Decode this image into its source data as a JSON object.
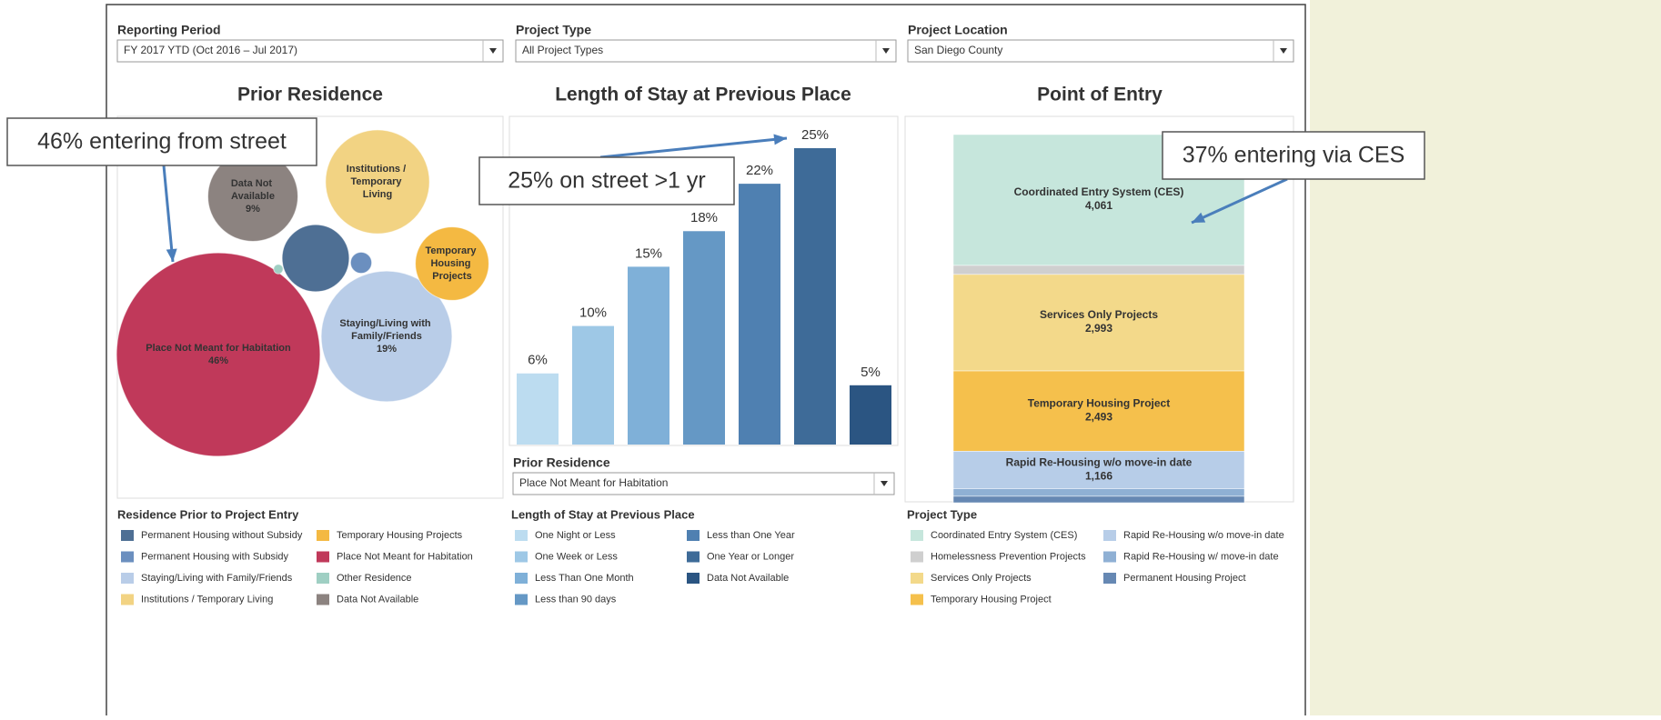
{
  "filters": [
    {
      "label": "Reporting Period",
      "value": "FY 2017 YTD (Oct 2016 – Jul 2017)"
    },
    {
      "label": "Project Type",
      "value": "All Project Types"
    },
    {
      "label": "Project Location",
      "value": "San Diego County"
    }
  ],
  "callouts": [
    "46% entering from street",
    "25% on street >1 yr",
    "37% entering via CES"
  ],
  "chart_data": [
    {
      "type": "bubble",
      "title": "Prior Residence",
      "labels": [
        "Place Not Meant for Habitation",
        "Staying/Living with Family/Friends",
        "Institutions / Temporary Living",
        "Data Not Available",
        "Temporary Housing Projects",
        null,
        null,
        null
      ],
      "values": [
        46,
        19,
        12,
        9,
        6,
        5,
        0.5,
        0.1
      ],
      "value_labels": [
        "46%",
        "19%",
        null,
        "9%",
        null,
        null,
        null,
        null
      ],
      "colors": [
        "#c0395a",
        "#b9cde8",
        "#f2d383",
        "#8c8380",
        "#f4b942",
        "#4e6f94",
        "#6b8fbf",
        "#9fcfc3"
      ],
      "legend": {
        "title": "Residence Prior to Project Entry",
        "items": [
          {
            "name": "Permanent Housing without Subsidy",
            "color": "#4e6f94"
          },
          {
            "name": "Permanent Housing with Subsidy",
            "color": "#6b8fbf"
          },
          {
            "name": "Staying/Living with Family/Friends",
            "color": "#b9cde8"
          },
          {
            "name": "Institutions / Temporary Living",
            "color": "#f2d383"
          },
          {
            "name": "Temporary Housing Projects",
            "color": "#f4b942"
          },
          {
            "name": "Place Not Meant for Habitation",
            "color": "#c0395a"
          },
          {
            "name": "Other Residence",
            "color": "#9fcfc3"
          },
          {
            "name": "Data Not Available",
            "color": "#8c8380"
          }
        ]
      }
    },
    {
      "type": "bar",
      "title": "Length of Stay at Previous Place",
      "categories": [
        "One Night or Less",
        "One Week or Less",
        "Less Than One Month",
        "Less than 90 days",
        "Less than One Year",
        "One Year or Longer",
        "Data Not Available"
      ],
      "values": [
        6,
        10,
        15,
        18,
        22,
        25,
        5
      ],
      "value_labels": [
        "6%",
        "10%",
        "15%",
        "18%",
        "22%",
        "25%",
        "5%"
      ],
      "colors": [
        "#bcdcf0",
        "#9ec8e6",
        "#7fb0d8",
        "#6598c5",
        "#4f80b1",
        "#3e6b98",
        "#2b5582"
      ],
      "filter": {
        "label": "Prior Residence",
        "value": "Place Not Meant for Habitation"
      },
      "legend_title": "Length of Stay at Previous Place"
    },
    {
      "type": "stacked_column",
      "title": "Point of Entry",
      "categories": [
        "Coordinated Entry System (CES)",
        "Homelessness Prevention Projects",
        "Services Only Projects",
        "Temporary Housing Project",
        "Rapid Re-Housing w/o move-in date",
        "Rapid Re-Housing w/ move-in date",
        "Permanent Housing Project"
      ],
      "values": [
        4061,
        280,
        2993,
        2493,
        1166,
        230,
        200
      ],
      "value_labels": [
        "4,061",
        null,
        "2,993",
        "2,493",
        "1,166",
        null,
        null
      ],
      "colors": [
        "#c6e6dc",
        "#cfcfcf",
        "#f3d98a",
        "#f5c04c",
        "#b7cde8",
        "#8fb0d4",
        "#6688b3"
      ],
      "legend_title": "Project Type"
    }
  ]
}
